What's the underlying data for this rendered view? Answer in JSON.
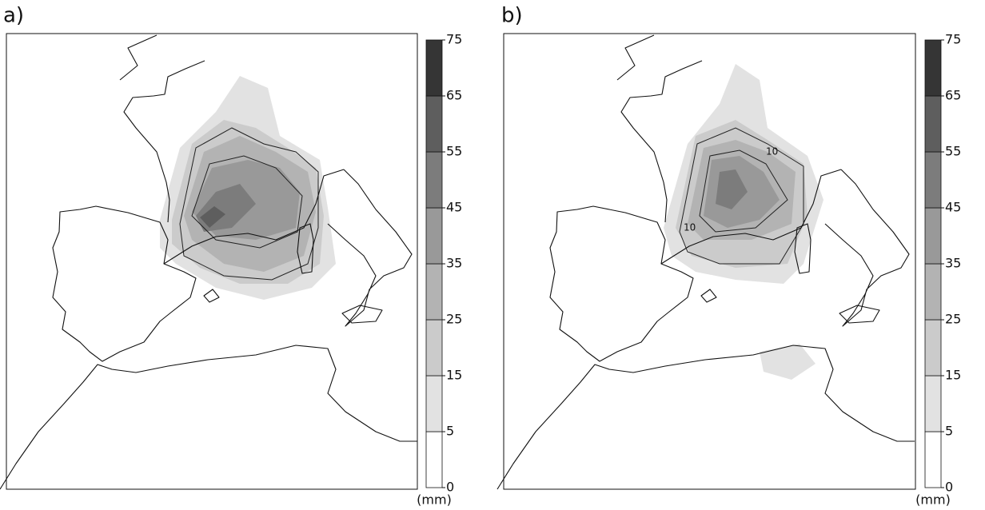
{
  "panels": [
    {
      "label": "a)",
      "colorbar": {
        "ticks": [
          0,
          5,
          15,
          25,
          35,
          45,
          55,
          65,
          75
        ],
        "colors": [
          "#ffffff",
          "#e2e2e2",
          "#cbcbcb",
          "#b3b3b3",
          "#999999",
          "#7c7c7c",
          "#5e5e5e",
          "#353535"
        ],
        "unit": "(mm)"
      }
    },
    {
      "label": "b)",
      "colorbar": {
        "ticks": [
          0,
          5,
          15,
          25,
          35,
          45,
          55,
          65,
          75
        ],
        "colors": [
          "#ffffff",
          "#e2e2e2",
          "#cbcbcb",
          "#b3b3b3",
          "#999999",
          "#7c7c7c",
          "#5e5e5e",
          "#353535"
        ],
        "unit": "(mm)"
      },
      "contour_labels": [
        "10",
        "10"
      ]
    }
  ]
}
